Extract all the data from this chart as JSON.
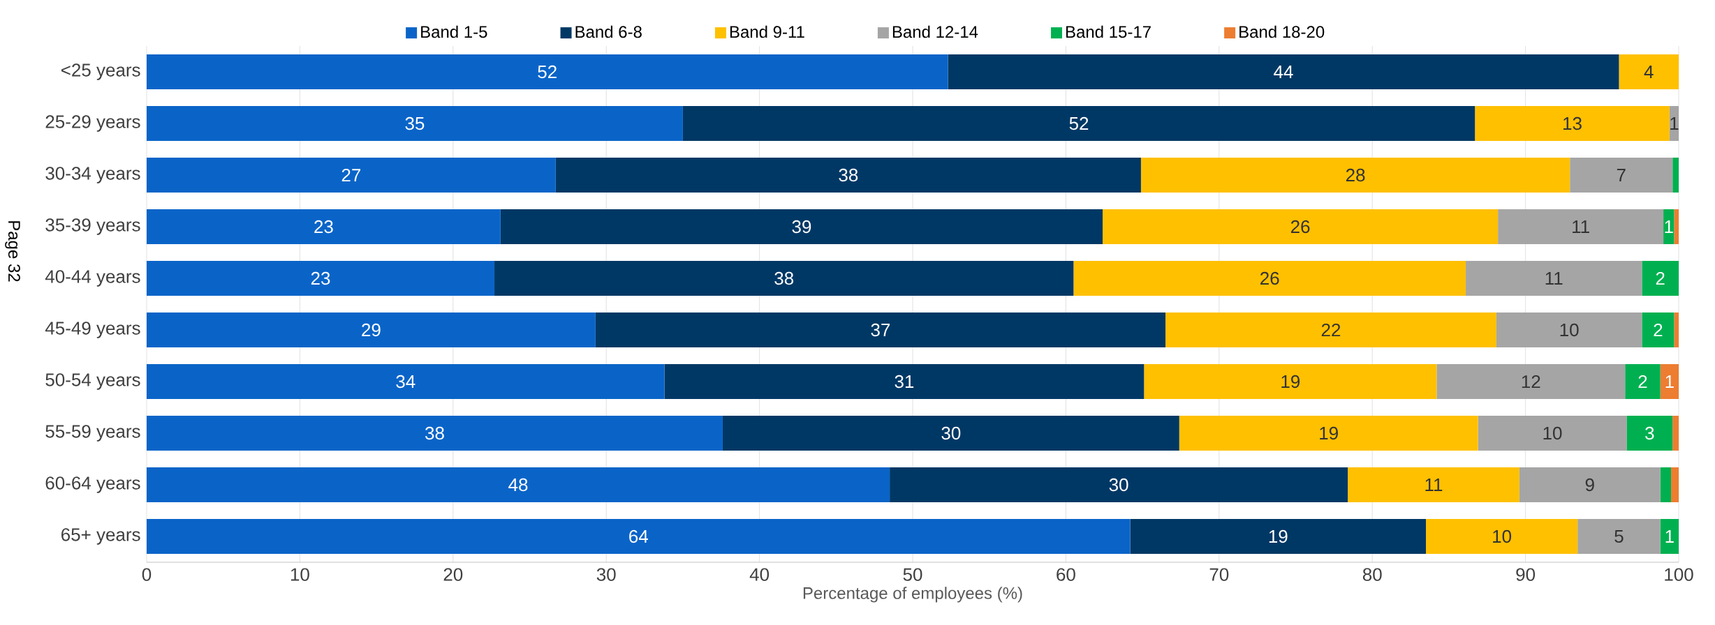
{
  "chart_data": {
    "type": "bar",
    "orientation": "horizontal",
    "stacked": true,
    "categories": [
      "<25 years",
      "25-29 years",
      "30-34 years",
      "35-39 years",
      "40-44 years",
      "45-49 years",
      "50-54 years",
      "55-59 years",
      "60-64 years",
      "65+ years"
    ],
    "series": [
      {
        "name": "Band 1-5",
        "color": "#0a64c8",
        "values": [
          52.3,
          35.0,
          26.7,
          23.1,
          22.7,
          29.3,
          33.8,
          37.6,
          48.5,
          64.2
        ],
        "value_labels": [
          "52",
          "35",
          "27",
          "23",
          "23",
          "29",
          "34",
          "38",
          "48",
          "64"
        ]
      },
      {
        "name": "Band 6-8",
        "color": "#003865",
        "values": [
          43.8,
          51.7,
          38.2,
          39.3,
          37.8,
          37.2,
          31.3,
          29.8,
          29.9,
          19.3
        ],
        "value_labels": [
          "44",
          "52",
          "38",
          "39",
          "38",
          "37",
          "31",
          "30",
          "30",
          "19"
        ]
      },
      {
        "name": "Band 9-11",
        "color": "#ffc000",
        "values": [
          3.9,
          12.7,
          28.0,
          25.8,
          25.6,
          21.6,
          19.1,
          19.5,
          11.2,
          9.9
        ],
        "value_labels": [
          "4",
          "13",
          "28",
          "26",
          "26",
          "22",
          "19",
          "19",
          "11",
          "10"
        ]
      },
      {
        "name": "Band 12-14",
        "color": "#a5a5a5",
        "values": [
          0,
          0.6,
          6.7,
          10.8,
          11.5,
          9.5,
          12.3,
          9.7,
          9.2,
          5.4
        ],
        "value_labels": [
          null,
          "1",
          "7",
          "11",
          "11",
          "10",
          "12",
          "10",
          "9",
          "5"
        ]
      },
      {
        "name": "Band 15-17",
        "color": "#00b050",
        "values": [
          0,
          0,
          0.4,
          0.7,
          2.4,
          2.1,
          2.3,
          3.0,
          0.7,
          1.2
        ],
        "value_labels": [
          null,
          null,
          null,
          "1",
          "2",
          "2",
          "2",
          "3",
          null,
          "1"
        ]
      },
      {
        "name": "Band 18-20",
        "color": "#ed7d31",
        "values": [
          0,
          0,
          0,
          0.3,
          0,
          0.3,
          1.2,
          0.4,
          0.5,
          0
        ],
        "value_labels": [
          null,
          null,
          null,
          null,
          null,
          null,
          "1",
          null,
          null,
          null
        ]
      }
    ],
    "xlim": [
      0,
      100
    ],
    "xticks": [
      0,
      10,
      20,
      30,
      40,
      50,
      60,
      70,
      80,
      90,
      100
    ],
    "xlabel": "Percentage of employees (%)",
    "grid": "x",
    "legend": "top",
    "annotations": [
      "Page 32"
    ]
  }
}
